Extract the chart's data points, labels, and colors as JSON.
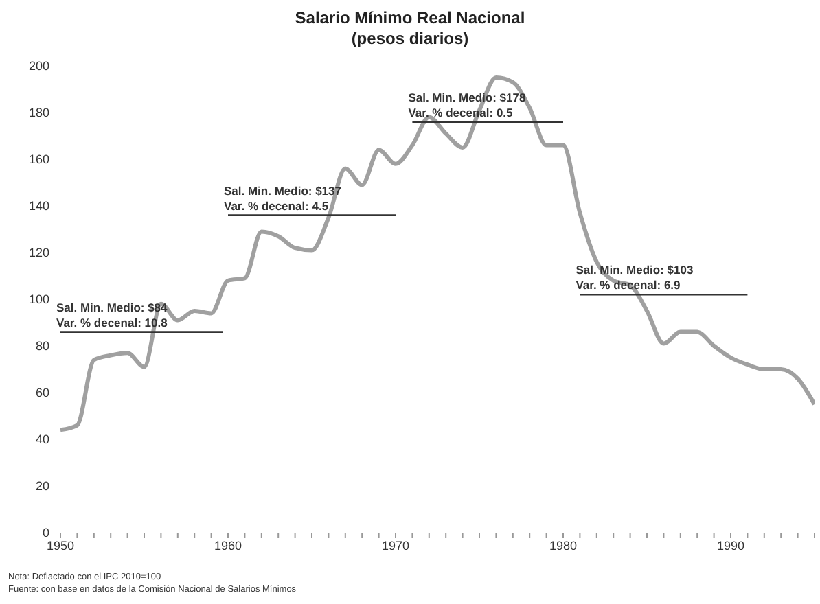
{
  "chart_data": {
    "type": "line",
    "title": "Salario Mínimo Real Nacional",
    "subtitle": "(pesos diarios)",
    "x": [
      1950,
      1951,
      1952,
      1953,
      1954,
      1955,
      1956,
      1957,
      1958,
      1959,
      1960,
      1961,
      1962,
      1963,
      1964,
      1965,
      1966,
      1967,
      1968,
      1969,
      1970,
      1971,
      1972,
      1973,
      1974,
      1975,
      1976,
      1977,
      1978,
      1979,
      1980,
      1981,
      1982,
      1983,
      1984,
      1985,
      1986,
      1987,
      1988,
      1989,
      1990,
      1991,
      1992,
      1993,
      1994,
      1995
    ],
    "series": [
      {
        "color": "#a0a0a0",
        "values": [
          44,
          46,
          74,
          76,
          77,
          71,
          98,
          91,
          95,
          94,
          108,
          109,
          129,
          127,
          122,
          121,
          135,
          156,
          149,
          164,
          158,
          166,
          178,
          171,
          165,
          181,
          195,
          193,
          182,
          166,
          166,
          137,
          116,
          108,
          106,
          95,
          81,
          86,
          86,
          80,
          75,
          72,
          70,
          70,
          66,
          55
        ]
      },
      {
        "type": "line",
        "color": "#333333",
        "x": [
          1950,
          1959.7
        ],
        "values": [
          86,
          86
        ]
      },
      {
        "type": "line",
        "color": "#333333",
        "x": [
          1960,
          1970
        ],
        "values": [
          136,
          136
        ]
      },
      {
        "type": "line",
        "color": "#333333",
        "x": [
          1971,
          1980
        ],
        "values": [
          176,
          176
        ]
      },
      {
        "type": "line",
        "color": "#333333",
        "x": [
          1981,
          1991
        ],
        "values": [
          102,
          102
        ]
      }
    ],
    "xlim": [
      1950,
      1995
    ],
    "ylim": [
      0,
      200
    ],
    "xticks": [
      1950,
      {
        "value": 1951,
        "label": null
      },
      {
        "value": 1952,
        "label": null
      },
      {
        "value": 1953,
        "label": null
      },
      {
        "value": 1954,
        "label": null
      },
      {
        "value": 1955,
        "label": null
      },
      {
        "value": 1956,
        "label": null
      },
      {
        "value": 1957,
        "label": null
      },
      {
        "value": 1958,
        "label": null
      },
      {
        "value": 1959,
        "label": null
      },
      1960,
      {
        "value": 1961,
        "label": null
      },
      {
        "value": 1962,
        "label": null
      },
      {
        "value": 1963,
        "label": null
      },
      {
        "value": 1964,
        "label": null
      },
      {
        "value": 1965,
        "label": null
      },
      {
        "value": 1966,
        "label": null
      },
      {
        "value": 1967,
        "label": null
      },
      {
        "value": 1968,
        "label": null
      },
      {
        "value": 1969,
        "label": null
      },
      1970,
      {
        "value": 1971,
        "label": null
      },
      {
        "value": 1972,
        "label": null
      },
      {
        "value": 1973,
        "label": null
      },
      {
        "value": 1974,
        "label": null
      },
      {
        "value": 1975,
        "label": null
      },
      {
        "value": 1976,
        "label": null
      },
      {
        "value": 1977,
        "label": null
      },
      {
        "value": 1978,
        "label": null
      },
      {
        "value": 1979,
        "label": null
      },
      1980,
      {
        "value": 1981,
        "label": null
      },
      {
        "value": 1982,
        "label": null
      },
      {
        "value": 1983,
        "label": null
      },
      {
        "value": 1984,
        "label": null
      },
      {
        "value": 1985,
        "label": null
      },
      {
        "value": 1986,
        "label": null
      },
      {
        "value": 1987,
        "label": null
      },
      {
        "value": 1988,
        "label": null
      },
      {
        "value": 1989,
        "label": null
      },
      1990,
      {
        "value": 1991,
        "label": null
      },
      {
        "value": 1992,
        "label": null
      },
      {
        "value": 1993,
        "label": null
      },
      {
        "value": 1994,
        "label": null
      },
      {
        "value": 1995,
        "label": null
      }
    ],
    "yticks": [
      0,
      20,
      40,
      60,
      80,
      100,
      120,
      140,
      160,
      180,
      200
    ],
    "marker": "none",
    "line_style": "solid",
    "annotations": [
      {
        "text": "Sal. Min. Medio: $84\nVar. % decenal: 10.8",
        "x": 1950,
        "y": 86
      },
      {
        "text": "Sal. Min. Medio: $137\nVar. % decenal: 4.5",
        "x": 1960,
        "y": 136
      },
      {
        "text": "Sal. Min. Medio: $178\nVar. % decenal: 0.5",
        "x": 1971,
        "y": 176
      },
      {
        "text": "Sal. Min. Medio: $103\nVar. % decenal: 6.9",
        "x": 1981,
        "y": 102
      },
      "Nota: Deflactado con el IPC 2010=100",
      "Fuente: con base en datos de la Comisión Nacional de Salarios Mínimos"
    ]
  }
}
